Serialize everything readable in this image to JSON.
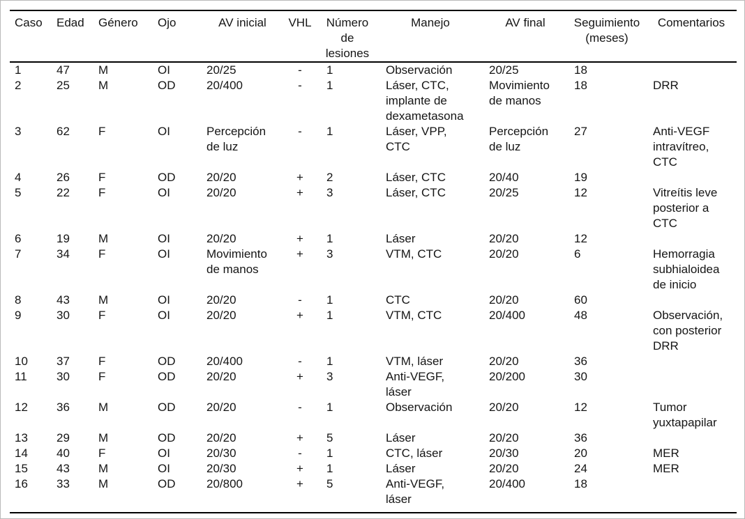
{
  "table": {
    "columns": [
      {
        "key": "caso",
        "label": "Caso"
      },
      {
        "key": "edad",
        "label": "Edad"
      },
      {
        "key": "genero",
        "label": "Género"
      },
      {
        "key": "ojo",
        "label": "Ojo"
      },
      {
        "key": "av_inicial",
        "label": "AV inicial"
      },
      {
        "key": "vhl",
        "label": "VHL"
      },
      {
        "key": "numero_de_lesiones",
        "label": "Número de lesiones"
      },
      {
        "key": "manejo",
        "label": "Manejo"
      },
      {
        "key": "av_final",
        "label": "AV final"
      },
      {
        "key": "seguimiento_meses",
        "label": "Seguimiento (meses)"
      },
      {
        "key": "comentarios",
        "label": "Comentarios"
      }
    ],
    "rows": [
      {
        "caso": "1",
        "edad": "47",
        "genero": "M",
        "ojo": "OI",
        "av_inicial": "20/25",
        "vhl": "-",
        "numero_de_lesiones": "1",
        "manejo": "Observación",
        "av_final": "20/25",
        "seguimiento_meses": "18",
        "comentarios": ""
      },
      {
        "caso": "2",
        "edad": "25",
        "genero": "M",
        "ojo": "OD",
        "av_inicial": "20/400",
        "vhl": "-",
        "numero_de_lesiones": "1",
        "manejo": "Láser, CTC, implante de dexametasona",
        "av_final": "Movimiento de manos",
        "seguimiento_meses": "18",
        "comentarios": "DRR"
      },
      {
        "caso": "3",
        "edad": "62",
        "genero": "F",
        "ojo": "OI",
        "av_inicial": "Percepción de luz",
        "vhl": "-",
        "numero_de_lesiones": "1",
        "manejo": "Láser, VPP, CTC",
        "av_final": "Percepción de luz",
        "seguimiento_meses": "27",
        "comentarios": "Anti-VEGF intravítreo, CTC"
      },
      {
        "caso": "4",
        "edad": "26",
        "genero": "F",
        "ojo": "OD",
        "av_inicial": "20/20",
        "vhl": "+",
        "numero_de_lesiones": "2",
        "manejo": "Láser, CTC",
        "av_final": "20/40",
        "seguimiento_meses": "19",
        "comentarios": ""
      },
      {
        "caso": "5",
        "edad": "22",
        "genero": "F",
        "ojo": "OI",
        "av_inicial": "20/20",
        "vhl": "+",
        "numero_de_lesiones": "3",
        "manejo": "Láser, CTC",
        "av_final": "20/25",
        "seguimiento_meses": "12",
        "comentarios": "Vitreítis leve posterior a CTC"
      },
      {
        "caso": "6",
        "edad": "19",
        "genero": "M",
        "ojo": "OI",
        "av_inicial": "20/20",
        "vhl": "+",
        "numero_de_lesiones": "1",
        "manejo": "Láser",
        "av_final": "20/20",
        "seguimiento_meses": "12",
        "comentarios": ""
      },
      {
        "caso": "7",
        "edad": "34",
        "genero": "F",
        "ojo": "OI",
        "av_inicial": "Movimiento de manos",
        "vhl": "+",
        "numero_de_lesiones": "3",
        "manejo": "VTM, CTC",
        "av_final": "20/20",
        "seguimiento_meses": "6",
        "comentarios": "Hemorragia subhialoidea de inicio"
      },
      {
        "caso": "8",
        "edad": "43",
        "genero": "M",
        "ojo": "OI",
        "av_inicial": "20/20",
        "vhl": "-",
        "numero_de_lesiones": "1",
        "manejo": "CTC",
        "av_final": "20/20",
        "seguimiento_meses": "60",
        "comentarios": ""
      },
      {
        "caso": "9",
        "edad": "30",
        "genero": "F",
        "ojo": "OI",
        "av_inicial": "20/20",
        "vhl": "+",
        "numero_de_lesiones": "1",
        "manejo": "VTM, CTC",
        "av_final": "20/400",
        "seguimiento_meses": "48",
        "comentarios": "Observación, con posterior DRR"
      },
      {
        "caso": "10",
        "edad": "37",
        "genero": "F",
        "ojo": "OD",
        "av_inicial": "20/400",
        "vhl": "-",
        "numero_de_lesiones": "1",
        "manejo": "VTM, láser",
        "av_final": "20/20",
        "seguimiento_meses": "36",
        "comentarios": ""
      },
      {
        "caso": "11",
        "edad": "30",
        "genero": "F",
        "ojo": "OD",
        "av_inicial": "20/20",
        "vhl": "+",
        "numero_de_lesiones": "3",
        "manejo": "Anti-VEGF, láser",
        "av_final": "20/200",
        "seguimiento_meses": "30",
        "comentarios": ""
      },
      {
        "caso": "12",
        "edad": "36",
        "genero": "M",
        "ojo": "OD",
        "av_inicial": "20/20",
        "vhl": "-",
        "numero_de_lesiones": "1",
        "manejo": "Observación",
        "av_final": "20/20",
        "seguimiento_meses": "12",
        "comentarios": "Tumor yuxtapapilar"
      },
      {
        "caso": "13",
        "edad": "29",
        "genero": "M",
        "ojo": "OD",
        "av_inicial": "20/20",
        "vhl": "+",
        "numero_de_lesiones": "5",
        "manejo": "Láser",
        "av_final": "20/20",
        "seguimiento_meses": "36",
        "comentarios": ""
      },
      {
        "caso": "14",
        "edad": "40",
        "genero": "F",
        "ojo": "OI",
        "av_inicial": "20/30",
        "vhl": "-",
        "numero_de_lesiones": "1",
        "manejo": "CTC, láser",
        "av_final": "20/30",
        "seguimiento_meses": "20",
        "comentarios": "MER"
      },
      {
        "caso": "15",
        "edad": "43",
        "genero": "M",
        "ojo": "OI",
        "av_inicial": "20/30",
        "vhl": "+",
        "numero_de_lesiones": "1",
        "manejo": "Láser",
        "av_final": "20/20",
        "seguimiento_meses": "24",
        "comentarios": "MER"
      },
      {
        "caso": "16",
        "edad": "33",
        "genero": "M",
        "ojo": "OD",
        "av_inicial": "20/800",
        "vhl": "+",
        "numero_de_lesiones": "5",
        "manejo": "Anti-VEGF, láser",
        "av_final": "20/400",
        "seguimiento_meses": "18",
        "comentarios": ""
      }
    ]
  }
}
